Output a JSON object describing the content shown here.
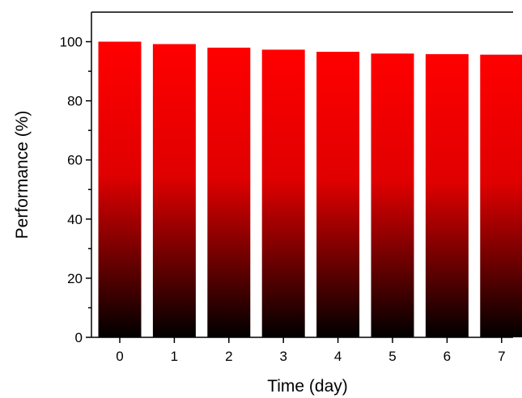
{
  "chart_data": {
    "type": "bar",
    "title": "",
    "xlabel": "Time (day)",
    "ylabel": "Performance (%)",
    "categories": [
      "0",
      "1",
      "2",
      "3",
      "4",
      "5",
      "6",
      "7"
    ],
    "values": [
      100,
      99.2,
      98.0,
      97.3,
      96.6,
      96.0,
      95.8,
      95.6
    ],
    "ylim": [
      0,
      110
    ],
    "yticks": [
      0,
      20,
      40,
      60,
      80,
      100
    ],
    "grid": false,
    "legend": "none",
    "colors": {
      "bar_top": "#ff0000",
      "bar_mid": "#e00000",
      "bar_bottom": "#000000",
      "axis": "#000000"
    }
  }
}
